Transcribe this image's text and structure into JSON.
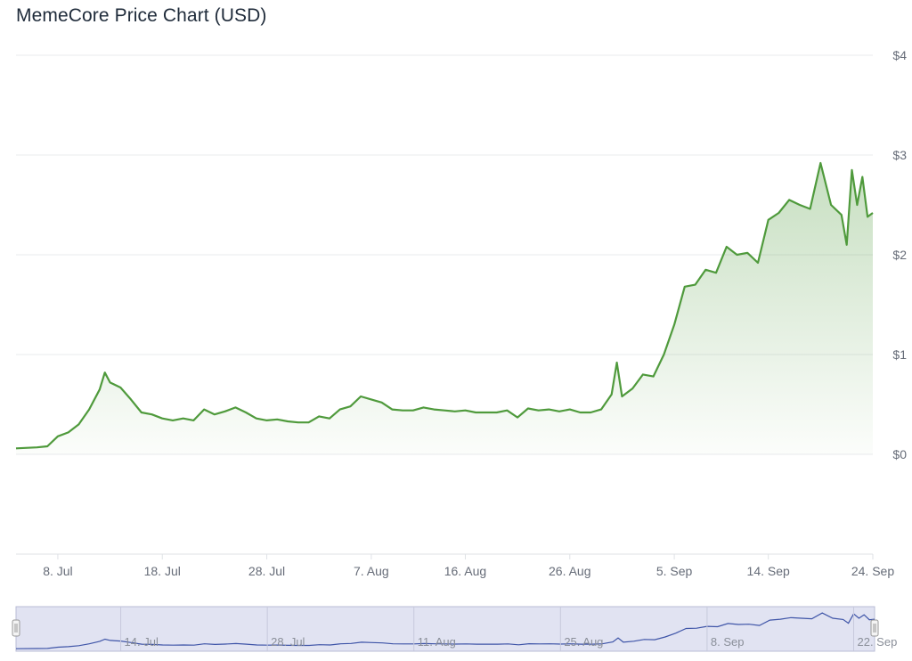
{
  "title": "MemeCore Price Chart (USD)",
  "colors": {
    "line": "#4f9a3c",
    "area_top": "#4f9a3c",
    "grid": "#e9ebee",
    "navigator_line": "#3f55a8",
    "navigator_mask": "#d7d9ee"
  },
  "chart_data": {
    "type": "area",
    "title": "MemeCore Price Chart (USD)",
    "xlabel": "",
    "ylabel": "",
    "grid": true,
    "legend": "none",
    "y_ticks": [
      "$0",
      "$1",
      "$2",
      "$3",
      "$4"
    ],
    "ylim": [
      0,
      4
    ],
    "xlim": [
      "2025-07-04",
      "2025-09-24"
    ],
    "x_ticks": [
      "8. Jul",
      "18. Jul",
      "28. Jul",
      "7. Aug",
      "16. Aug",
      "26. Aug",
      "5. Sep",
      "14. Sep",
      "24. Sep"
    ],
    "series": [
      {
        "values": [
          [
            "2025-07-04",
            0.06
          ],
          [
            "2025-07-06",
            0.07
          ],
          [
            "2025-07-07",
            0.08
          ],
          [
            "2025-07-08",
            0.18
          ],
          [
            "2025-07-09",
            0.22
          ],
          [
            "2025-07-10",
            0.3
          ],
          [
            "2025-07-11",
            0.45
          ],
          [
            "2025-07-12",
            0.65
          ],
          [
            "2025-07-12T12:00",
            0.82
          ],
          [
            "2025-07-13",
            0.72
          ],
          [
            "2025-07-14",
            0.67
          ],
          [
            "2025-07-15",
            0.55
          ],
          [
            "2025-07-16",
            0.42
          ],
          [
            "2025-07-17",
            0.4
          ],
          [
            "2025-07-18",
            0.36
          ],
          [
            "2025-07-19",
            0.34
          ],
          [
            "2025-07-20",
            0.36
          ],
          [
            "2025-07-21",
            0.34
          ],
          [
            "2025-07-22",
            0.45
          ],
          [
            "2025-07-23",
            0.4
          ],
          [
            "2025-07-24",
            0.43
          ],
          [
            "2025-07-25",
            0.47
          ],
          [
            "2025-07-26",
            0.42
          ],
          [
            "2025-07-27",
            0.36
          ],
          [
            "2025-07-28",
            0.34
          ],
          [
            "2025-07-29",
            0.35
          ],
          [
            "2025-07-30",
            0.33
          ],
          [
            "2025-07-31",
            0.32
          ],
          [
            "2025-08-01",
            0.32
          ],
          [
            "2025-08-02",
            0.38
          ],
          [
            "2025-08-03",
            0.36
          ],
          [
            "2025-08-04",
            0.45
          ],
          [
            "2025-08-05",
            0.48
          ],
          [
            "2025-08-06",
            0.58
          ],
          [
            "2025-08-07",
            0.55
          ],
          [
            "2025-08-08",
            0.52
          ],
          [
            "2025-08-09",
            0.45
          ],
          [
            "2025-08-10",
            0.44
          ],
          [
            "2025-08-11",
            0.44
          ],
          [
            "2025-08-12",
            0.47
          ],
          [
            "2025-08-13",
            0.45
          ],
          [
            "2025-08-14",
            0.44
          ],
          [
            "2025-08-15",
            0.43
          ],
          [
            "2025-08-16",
            0.44
          ],
          [
            "2025-08-17",
            0.42
          ],
          [
            "2025-08-18",
            0.42
          ],
          [
            "2025-08-19",
            0.42
          ],
          [
            "2025-08-20",
            0.44
          ],
          [
            "2025-08-21",
            0.37
          ],
          [
            "2025-08-22",
            0.46
          ],
          [
            "2025-08-23",
            0.44
          ],
          [
            "2025-08-24",
            0.45
          ],
          [
            "2025-08-25",
            0.43
          ],
          [
            "2025-08-26",
            0.45
          ],
          [
            "2025-08-27",
            0.42
          ],
          [
            "2025-08-28",
            0.42
          ],
          [
            "2025-08-29",
            0.45
          ],
          [
            "2025-08-30",
            0.6
          ],
          [
            "2025-08-30T12:00",
            0.92
          ],
          [
            "2025-08-31",
            0.58
          ],
          [
            "2025-09-01",
            0.66
          ],
          [
            "2025-09-02",
            0.8
          ],
          [
            "2025-09-03",
            0.78
          ],
          [
            "2025-09-04",
            1.0
          ],
          [
            "2025-09-05",
            1.3
          ],
          [
            "2025-09-06",
            1.68
          ],
          [
            "2025-09-07",
            1.7
          ],
          [
            "2025-09-08",
            1.85
          ],
          [
            "2025-09-09",
            1.82
          ],
          [
            "2025-09-10",
            2.08
          ],
          [
            "2025-09-11",
            2.0
          ],
          [
            "2025-09-12",
            2.02
          ],
          [
            "2025-09-13",
            1.92
          ],
          [
            "2025-09-14",
            2.35
          ],
          [
            "2025-09-15",
            2.42
          ],
          [
            "2025-09-16",
            2.55
          ],
          [
            "2025-09-17",
            2.5
          ],
          [
            "2025-09-18",
            2.46
          ],
          [
            "2025-09-19",
            2.92
          ],
          [
            "2025-09-20",
            2.5
          ],
          [
            "2025-09-21",
            2.4
          ],
          [
            "2025-09-21T12:00",
            2.1
          ],
          [
            "2025-09-22",
            2.85
          ],
          [
            "2025-09-22T12:00",
            2.5
          ],
          [
            "2025-09-23",
            2.78
          ],
          [
            "2025-09-23T12:00",
            2.38
          ],
          [
            "2025-09-24",
            2.42
          ]
        ]
      }
    ],
    "navigator": {
      "x_ticks": [
        "14. Jul",
        "28. Jul",
        "11. Aug",
        "25. Aug",
        "8. Sep",
        "22. Sep"
      ]
    }
  }
}
